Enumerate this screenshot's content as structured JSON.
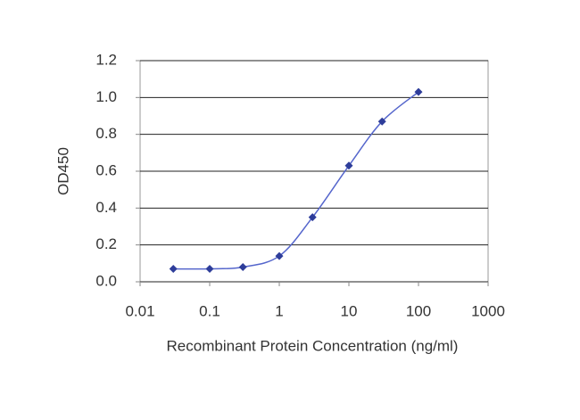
{
  "chart_data": {
    "type": "line",
    "xscale": "log",
    "x_label": "Recombinant Protein Concentration (ng/ml)",
    "y_label": "OD450",
    "x": [
      0.03,
      0.1,
      0.3,
      1,
      3,
      10,
      30,
      100
    ],
    "series": [
      {
        "color": "#2e3d9a",
        "values": [
          0.07,
          0.07,
          0.08,
          0.14,
          0.35,
          0.63,
          0.87,
          1.03
        ]
      }
    ],
    "xlim": [
      0.01,
      1000
    ],
    "xticks": [
      0.01,
      0.1,
      1,
      10,
      100,
      1000
    ],
    "ylim": [
      0,
      1.2
    ],
    "yticks": [
      {
        "value": 0,
        "label": "0.0"
      },
      0.2,
      0.4,
      0.6,
      0.8,
      {
        "value": 1,
        "label": "1.0"
      },
      1.2
    ],
    "grid": true
  }
}
